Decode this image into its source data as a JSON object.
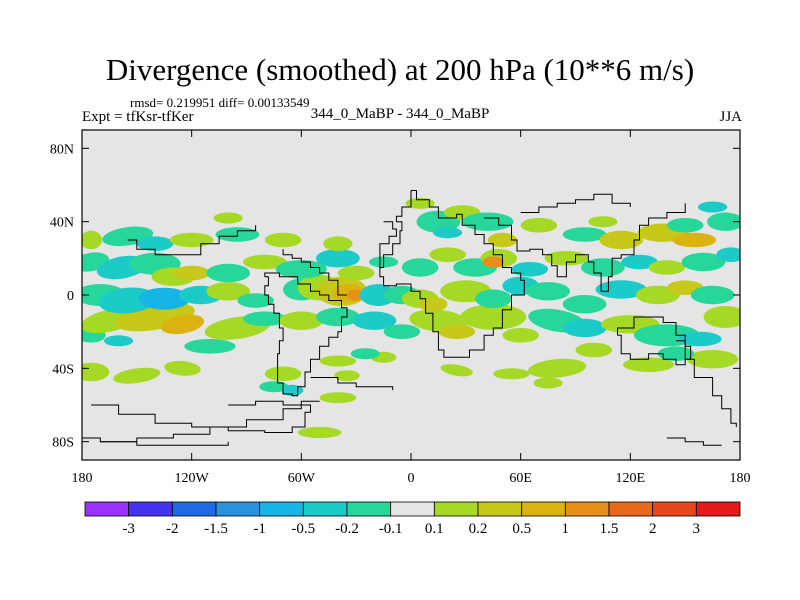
{
  "chart_data": {
    "type": "heatmap",
    "title": "Divergence (smoothed) at 200 hPa (10**6 m/s)",
    "stats_label": "rmsd= 0.219951 diff= 0.00133549",
    "left_label": "Expt = tfKsr-tfKer",
    "center_label": "344_0_MaBP - 344_0_MaBP",
    "right_label": "JJA",
    "x_range": [
      -180,
      180
    ],
    "y_range": [
      -90,
      90
    ],
    "x_ticks": [
      {
        "value": -180,
        "label": "180"
      },
      {
        "value": -120,
        "label": "120W"
      },
      {
        "value": -60,
        "label": "60W"
      },
      {
        "value": 0,
        "label": "0"
      },
      {
        "value": 60,
        "label": "60E"
      },
      {
        "value": 120,
        "label": "120E"
      },
      {
        "value": 180,
        "label": "180"
      }
    ],
    "y_ticks": [
      {
        "value": 80,
        "label": "80N"
      },
      {
        "value": 40,
        "label": "40N"
      },
      {
        "value": 0,
        "label": "0"
      },
      {
        "value": -40,
        "label": "40S"
      },
      {
        "value": -80,
        "label": "80S"
      }
    ],
    "colorbar": {
      "levels": [
        "-3",
        "-2",
        "-1.5",
        "-1",
        "-0.5",
        "-0.2",
        "-0.1",
        "0.1",
        "0.2",
        "0.5",
        "1",
        "1.5",
        "2",
        "3"
      ],
      "colors": [
        "#9b30ff",
        "#4433ee",
        "#1f6ae6",
        "#2a90e0",
        "#17b4e6",
        "#1ccbc8",
        "#27d699",
        "#e5e5e5",
        "#a5d925",
        "#c6c81a",
        "#dab312",
        "#e6901a",
        "#e76a1a",
        "#e8471a",
        "#e51919"
      ]
    },
    "features": [
      {
        "band": "positive",
        "lon": -172,
        "lat": 28,
        "level": 0.2
      },
      {
        "band": "positive",
        "lon": -140,
        "lat": 10,
        "level": 0.5
      },
      {
        "band": "positive",
        "lon": -128,
        "lat": -15,
        "level": 1
      },
      {
        "band": "positive",
        "lon": -35,
        "lat": 2,
        "level": 1.5
      },
      {
        "band": "positive",
        "lon": 20,
        "lat": -15,
        "level": 0.5
      },
      {
        "band": "positive",
        "lon": 155,
        "lat": 30,
        "level": 0.5
      },
      {
        "band": "positive",
        "lon": -170,
        "lat": -40,
        "level": 0.2
      },
      {
        "band": "negative",
        "lon": -150,
        "lat": 30,
        "level": -0.5
      },
      {
        "band": "negative",
        "lon": -40,
        "lat": 20,
        "level": -0.5
      },
      {
        "band": "negative",
        "lon": 85,
        "lat": -10,
        "level": -0.5
      },
      {
        "band": "negative",
        "lon": 170,
        "lat": 20,
        "level": -0.5
      },
      {
        "band": "negative",
        "lon": -10,
        "lat": -15,
        "level": -0.5
      }
    ]
  }
}
